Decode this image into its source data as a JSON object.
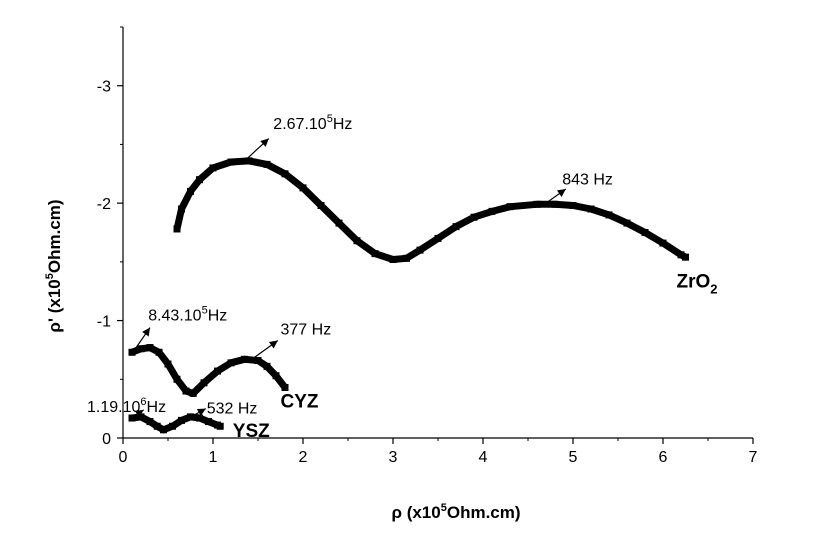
{
  "chart_data": {
    "type": "line",
    "xlabel": {
      "prefix": "ρ (x10",
      "sup": "5",
      "suffix": "Ohm.cm)"
    },
    "ylabel": {
      "prefix": "ρ' (x10",
      "sup": "5",
      "suffix": "Ohm.cm)"
    },
    "xlim": [
      0,
      7
    ],
    "ylim": [
      0,
      -3.5
    ],
    "xticks": [
      "0",
      "1",
      "2",
      "3",
      "4",
      "5",
      "6",
      "7"
    ],
    "yticks": [
      "0",
      "-1",
      "-2",
      "-3"
    ],
    "grid": false,
    "series": [
      {
        "name": "ZrO2",
        "points": [
          [
            0.6,
            -1.78
          ],
          [
            0.65,
            -1.95
          ],
          [
            0.75,
            -2.1
          ],
          [
            0.85,
            -2.2
          ],
          [
            1.0,
            -2.3
          ],
          [
            1.2,
            -2.35
          ],
          [
            1.4,
            -2.36
          ],
          [
            1.6,
            -2.33
          ],
          [
            1.8,
            -2.25
          ],
          [
            2.0,
            -2.13
          ],
          [
            2.2,
            -1.98
          ],
          [
            2.4,
            -1.83
          ],
          [
            2.6,
            -1.68
          ],
          [
            2.8,
            -1.57
          ],
          [
            3.0,
            -1.52
          ],
          [
            3.15,
            -1.53
          ],
          [
            3.3,
            -1.6
          ],
          [
            3.5,
            -1.7
          ],
          [
            3.7,
            -1.8
          ],
          [
            3.9,
            -1.88
          ],
          [
            4.1,
            -1.93
          ],
          [
            4.3,
            -1.97
          ],
          [
            4.6,
            -1.99
          ],
          [
            4.8,
            -1.99
          ],
          [
            5.0,
            -1.98
          ],
          [
            5.2,
            -1.95
          ],
          [
            5.4,
            -1.9
          ],
          [
            5.6,
            -1.83
          ],
          [
            5.8,
            -1.75
          ],
          [
            6.0,
            -1.66
          ],
          [
            6.2,
            -1.56
          ],
          [
            6.25,
            -1.54
          ]
        ]
      },
      {
        "name": "CYZ",
        "points": [
          [
            0.1,
            -0.73
          ],
          [
            0.2,
            -0.76
          ],
          [
            0.3,
            -0.77
          ],
          [
            0.4,
            -0.73
          ],
          [
            0.5,
            -0.63
          ],
          [
            0.6,
            -0.5
          ],
          [
            0.7,
            -0.4
          ],
          [
            0.78,
            -0.38
          ],
          [
            0.9,
            -0.47
          ],
          [
            1.05,
            -0.57
          ],
          [
            1.2,
            -0.64
          ],
          [
            1.35,
            -0.67
          ],
          [
            1.5,
            -0.66
          ],
          [
            1.6,
            -0.61
          ],
          [
            1.7,
            -0.53
          ],
          [
            1.8,
            -0.43
          ]
        ]
      },
      {
        "name": "YSZ",
        "points": [
          [
            0.1,
            -0.17
          ],
          [
            0.2,
            -0.18
          ],
          [
            0.3,
            -0.14
          ],
          [
            0.38,
            -0.1
          ],
          [
            0.45,
            -0.07
          ],
          [
            0.55,
            -0.1
          ],
          [
            0.65,
            -0.15
          ],
          [
            0.75,
            -0.18
          ],
          [
            0.85,
            -0.17
          ],
          [
            0.95,
            -0.14
          ],
          [
            1.05,
            -0.11
          ],
          [
            1.08,
            -0.1
          ]
        ]
      }
    ],
    "series_labels": [
      {
        "text": "ZrO",
        "sub": "2",
        "x": 6.15,
        "y": -1.28
      },
      {
        "text": "CYZ",
        "x": 1.75,
        "y": -0.26
      },
      {
        "text": "YSZ",
        "x": 1.22,
        "y": -0.01
      }
    ],
    "annotations": [
      {
        "pre": "2.67.10",
        "sup": "5",
        "post": "Hz",
        "x": 1.67,
        "y": -2.63,
        "ax1": 1.38,
        "ay1": -2.38,
        "ax2": 1.62,
        "ay2": -2.55
      },
      {
        "pre": "843 Hz",
        "x": 4.88,
        "y": -2.16,
        "ax1": 4.7,
        "ay1": -2.0,
        "ax2": 4.92,
        "ay2": -2.12
      },
      {
        "pre": "8.43.10",
        "sup": "5",
        "post": "Hz",
        "x": 0.28,
        "y": -1.0,
        "ax1": 0.1,
        "ay1": -0.72,
        "ax2": 0.3,
        "ay2": -0.94
      },
      {
        "pre": "377 Hz",
        "x": 1.75,
        "y": -0.88,
        "ax1": 1.45,
        "ay1": -0.68,
        "ax2": 1.72,
        "ay2": -0.83
      },
      {
        "pre": "1.19.10",
        "sup": "6",
        "post": "Hz",
        "x": -0.4,
        "y": -0.22,
        "ax1": 0.13,
        "ay1": -0.19,
        "ax2": 0.23,
        "ay2": -0.24
      },
      {
        "pre": "532 Hz",
        "x": 0.93,
        "y": -0.21,
        "ax1": 0.78,
        "ay1": -0.19,
        "ax2": 0.92,
        "ay2": -0.25
      }
    ]
  }
}
